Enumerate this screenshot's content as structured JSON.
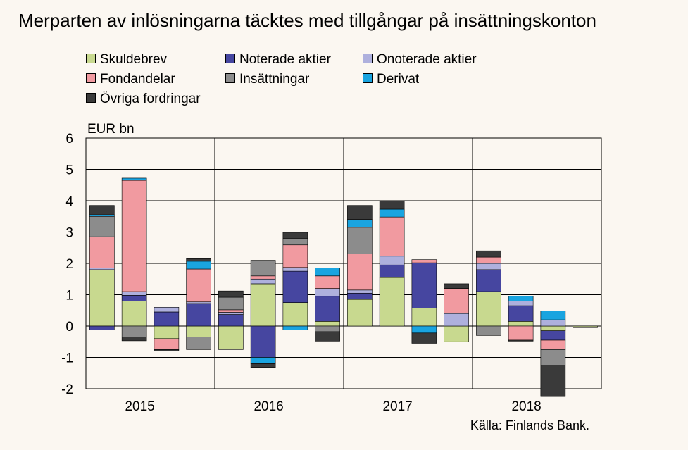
{
  "title": "Merparten av inlösningarna täcktes med tillgångar på insättningskonton",
  "source": "Källa: Finlands Bank.",
  "chart_data": {
    "type": "bar",
    "stacked": true,
    "ylabel": "EUR bn",
    "ylim": [
      -2,
      6
    ],
    "yticks": [
      "-2",
      "-1",
      "0",
      "1",
      "2",
      "3",
      "4",
      "5",
      "6"
    ],
    "grid": true,
    "legend_position": "top",
    "year_labels": [
      "2015",
      "2016",
      "2017",
      "2018"
    ],
    "categories": [
      "2015Q1",
      "2015Q2",
      "2015Q3",
      "2015Q4",
      "2016Q1",
      "2016Q2",
      "2016Q3",
      "2016Q4",
      "2017Q1",
      "2017Q2",
      "2017Q3",
      "2017Q4",
      "2018Q1",
      "2018Q2",
      "2018Q3",
      "2018Q4"
    ],
    "series": [
      {
        "name": "Skuldebrev",
        "color": "#c8d98f",
        "values": [
          1.8,
          0.8,
          -0.4,
          -0.35,
          -0.75,
          1.35,
          0.75,
          0.15,
          0.85,
          1.55,
          0.57,
          -0.5,
          1.1,
          0.15,
          -0.15,
          -0.05
        ]
      },
      {
        "name": "Noterade aktier",
        "color": "#4646a0",
        "values": [
          -0.12,
          0.18,
          0.45,
          0.72,
          0.37,
          -1.0,
          1.0,
          0.8,
          0.2,
          0.4,
          1.45,
          0.0,
          0.7,
          0.5,
          -0.3,
          0.0
        ]
      },
      {
        "name": "Onoterade aktier",
        "color": "#aeb0dd",
        "values": [
          0.05,
          0.12,
          0.15,
          0.05,
          0.07,
          0.15,
          0.12,
          0.25,
          0.1,
          0.28,
          0.0,
          0.4,
          0.2,
          0.15,
          0.2,
          0.0
        ]
      },
      {
        "name": "Fondandelar",
        "color": "#f19aa0",
        "values": [
          1.0,
          3.55,
          -0.35,
          1.05,
          0.08,
          0.1,
          0.72,
          0.4,
          1.15,
          1.25,
          0.1,
          0.8,
          0.2,
          -0.45,
          -0.3,
          0.0
        ]
      },
      {
        "name": "Insättningar",
        "color": "#8c8c8c",
        "values": [
          0.65,
          -0.35,
          0.0,
          -0.4,
          0.4,
          0.5,
          0.2,
          -0.18,
          0.85,
          0.0,
          0.0,
          0.0,
          -0.3,
          0.0,
          -0.5,
          0.0
        ]
      },
      {
        "name": "Derivat",
        "color": "#19a4e0",
        "values": [
          0.05,
          0.07,
          0.0,
          0.25,
          0.0,
          -0.2,
          -0.12,
          0.25,
          0.25,
          0.25,
          -0.22,
          0.0,
          0.0,
          0.15,
          0.28,
          0.0
        ]
      },
      {
        "name": "Övriga fordringar",
        "color": "#3a3a3a",
        "values": [
          0.3,
          -0.12,
          -0.05,
          0.08,
          0.2,
          -0.12,
          0.2,
          -0.3,
          0.45,
          0.27,
          -0.33,
          0.15,
          0.2,
          -0.03,
          -1.0,
          0.0
        ]
      }
    ]
  }
}
